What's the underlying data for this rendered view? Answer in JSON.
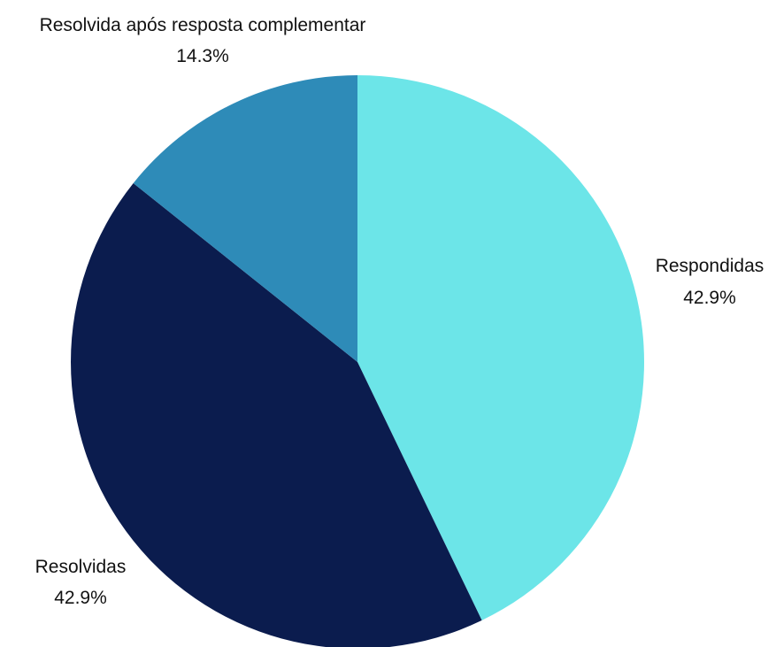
{
  "chart_data": {
    "type": "pie",
    "title": "",
    "slices": [
      {
        "name": "Respondidas",
        "value": 42.9,
        "label": "42.9%",
        "color": "#6ce5e8"
      },
      {
        "name": "Resolvidas",
        "value": 42.9,
        "label": "42.9%",
        "color": "#0b1c4e"
      },
      {
        "name": "Resolvida após resposta complementar",
        "value": 14.3,
        "label": "14.3%",
        "color": "#2e8bb8"
      }
    ],
    "start_angle": "12 o'clock",
    "direction": "clockwise",
    "legend": "none"
  }
}
